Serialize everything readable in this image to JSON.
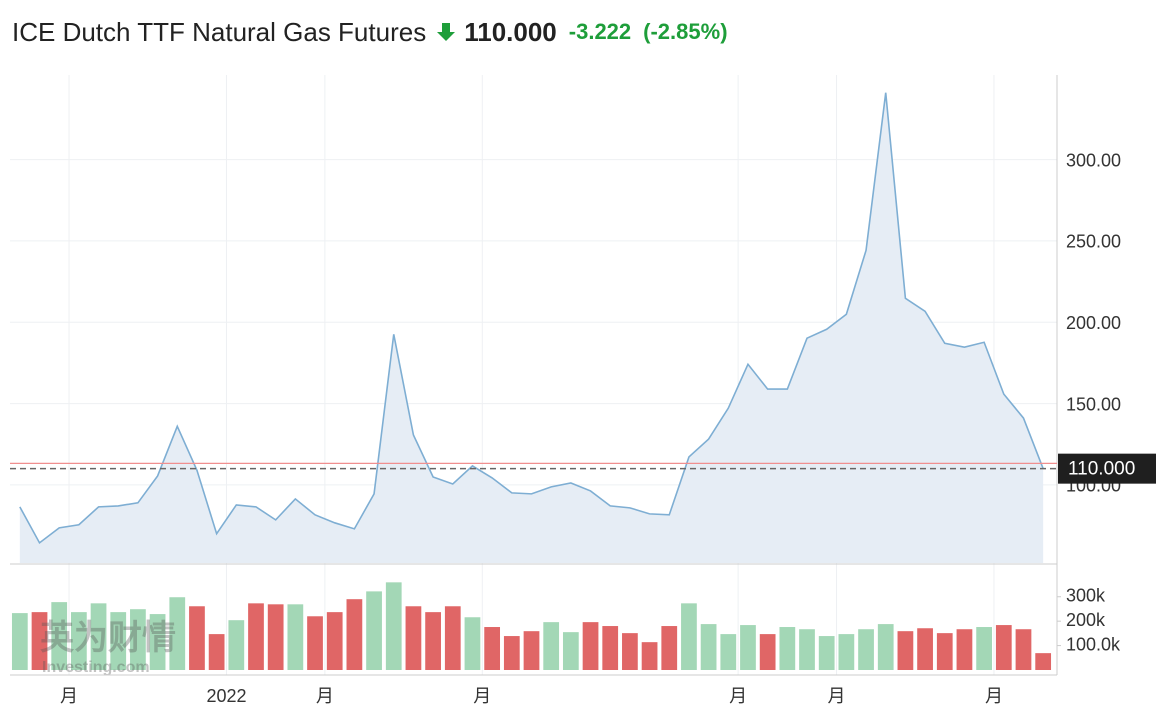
{
  "header": {
    "title": "ICE Dutch TTF Natural Gas Futures",
    "price": "110.000",
    "change": "-3.222",
    "change_percent": "(-2.85%)"
  },
  "watermark": [
    "英为财情",
    "Investing.com"
  ],
  "chart_data": [
    {
      "type": "area",
      "categories": [
        null,
        null,
        null,
        "月",
        null,
        null,
        null,
        null,
        null,
        null,
        null,
        "2022",
        null,
        null,
        null,
        null,
        "月",
        null,
        null,
        null,
        null,
        null,
        null,
        null,
        "月",
        null,
        null,
        null,
        null,
        null,
        null,
        null,
        null,
        null,
        null,
        null,
        null,
        "月",
        null,
        null,
        null,
        null,
        "月",
        null,
        null,
        null,
        null,
        null,
        null,
        null,
        "月",
        null,
        null
      ],
      "values": [
        86.5,
        64.4,
        73.6,
        75.5,
        86.5,
        87.1,
        89,
        105.5,
        136,
        109,
        70,
        87.7,
        86.5,
        78.5,
        91.4,
        81.6,
        76.7,
        73,
        94.5,
        192.6,
        130.7,
        104.9,
        100.6,
        111.7,
        104.3,
        95.1,
        94.5,
        98.8,
        101.2,
        96.3,
        87.1,
        85.9,
        82.2,
        81.6,
        117.2,
        128.2,
        147.2,
        174.2,
        158.9,
        158.9,
        190.2,
        195.7,
        204.9,
        244.2,
        341.1,
        214.7,
        206.7,
        187.1,
        184.7,
        187.7,
        155.8,
        141.1,
        110
      ],
      "color": "#7eaed3",
      "ylim": [
        52,
        352
      ],
      "yticks": [
        {
          "value": 100,
          "label": "100.00"
        },
        {
          "value": 150,
          "label": "150.00"
        },
        {
          "value": 200,
          "label": "200.00"
        },
        {
          "value": 250,
          "label": "250.00"
        },
        {
          "value": 300,
          "label": "300.00"
        }
      ],
      "grid": true,
      "last_price": {
        "value": 110,
        "label": "110.000"
      },
      "previous_close": 113.222
    },
    {
      "type": "bar",
      "values": [
        233000,
        237000,
        278000,
        237000,
        273000,
        237000,
        249000,
        229000,
        298000,
        261000,
        147000,
        204000,
        273000,
        269000,
        269000,
        220000,
        237000,
        290000,
        322000,
        359000,
        261000,
        237000,
        261000,
        216000,
        176000,
        139000,
        159000,
        196000,
        155000,
        196000,
        180000,
        151000,
        114000,
        180000,
        273000,
        188000,
        147000,
        184000,
        147000,
        176000,
        167000,
        139000,
        147000,
        167000,
        188000,
        159000,
        171000,
        151000,
        167000,
        176000,
        184000,
        167000,
        69000
      ],
      "colors": [
        "#a3d7b6",
        "#e06666",
        "#a3d7b6",
        "#a3d7b6",
        "#a3d7b6",
        "#a3d7b6",
        "#a3d7b6",
        "#a3d7b6",
        "#a3d7b6",
        "#e06666",
        "#e06666",
        "#a3d7b6",
        "#e06666",
        "#e06666",
        "#a3d7b6",
        "#e06666",
        "#e06666",
        "#e06666",
        "#a3d7b6",
        "#a3d7b6",
        "#e06666",
        "#e06666",
        "#e06666",
        "#a3d7b6",
        "#e06666",
        "#e06666",
        "#e06666",
        "#a3d7b6",
        "#a3d7b6",
        "#e06666",
        "#e06666",
        "#e06666",
        "#e06666",
        "#e06666",
        "#a3d7b6",
        "#a3d7b6",
        "#a3d7b6",
        "#a3d7b6",
        "#e06666",
        "#a3d7b6",
        "#a3d7b6",
        "#a3d7b6",
        "#a3d7b6",
        "#a3d7b6",
        "#a3d7b6",
        "#e06666",
        "#e06666",
        "#e06666",
        "#e06666",
        "#a3d7b6",
        "#e06666",
        "#e06666",
        "#e06666"
      ],
      "ylim": [
        0,
        430000
      ],
      "yticks": [
        {
          "value": 100000,
          "label": "100.0k"
        },
        {
          "value": 200000,
          "label": "200k"
        },
        {
          "value": 300000,
          "label": "300k"
        }
      ]
    }
  ]
}
